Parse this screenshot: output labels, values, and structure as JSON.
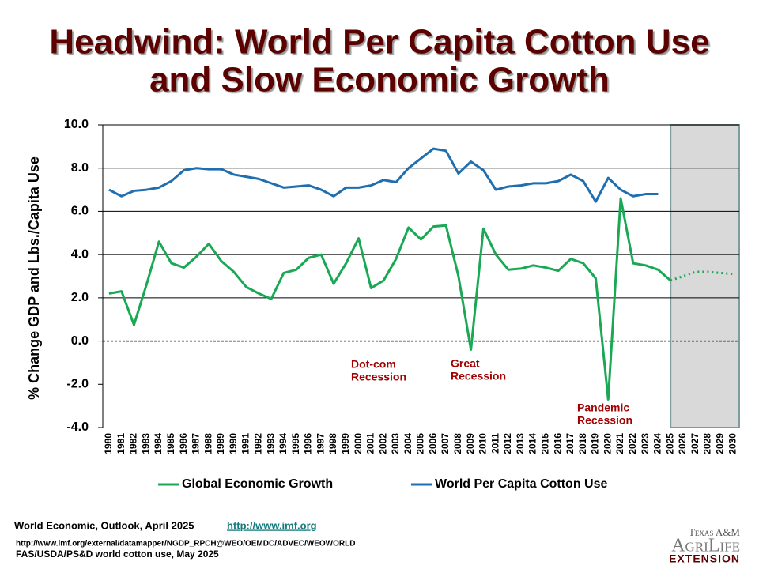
{
  "chart_data": {
    "type": "line",
    "title": [
      "Headwind:  World Per Capita Cotton Use",
      "and Slow Economic Growth"
    ],
    "y_label": "% Change GDP and Lbs./Capita Use",
    "categories": [
      "1980",
      "1981",
      "1982",
      "1983",
      "1984",
      "1985",
      "1986",
      "1987",
      "1988",
      "1989",
      "1990",
      "1991",
      "1992",
      "1993",
      "1994",
      "1995",
      "1996",
      "1997",
      "1998",
      "1999",
      "2000",
      "2001",
      "2002",
      "2003",
      "2004",
      "2005",
      "2006",
      "2007",
      "2008",
      "2009",
      "2010",
      "2011",
      "2012",
      "2013",
      "2014",
      "2015",
      "2016",
      "2017",
      "2018",
      "2019",
      "2020",
      "2021",
      "2022",
      "2023",
      "2024",
      "2025",
      "2026",
      "2027",
      "2028",
      "2029",
      "2030"
    ],
    "series": [
      {
        "name": "Global Economic Growth",
        "color": "#1aa855",
        "values": [
          2.2,
          2.3,
          0.75,
          2.6,
          4.6,
          3.6,
          3.4,
          3.9,
          4.5,
          3.7,
          3.2,
          2.5,
          2.2,
          1.95,
          3.15,
          3.3,
          3.85,
          4.0,
          2.65,
          3.6,
          4.75,
          2.45,
          2.8,
          3.8,
          5.25,
          4.7,
          5.3,
          5.35,
          3.0,
          -0.4,
          5.2,
          4.0,
          3.3,
          3.35,
          3.5,
          3.4,
          3.25,
          3.8,
          3.6,
          2.9,
          -2.7,
          6.6,
          3.6,
          3.5,
          3.3,
          2.8,
          3.0,
          3.2,
          3.2,
          3.15,
          3.1
        ]
      },
      {
        "name": "World Per Capita Cotton Use",
        "color": "#1f6eb0",
        "values": [
          7.0,
          6.7,
          6.95,
          7.0,
          7.1,
          7.4,
          7.9,
          8.0,
          7.95,
          7.95,
          7.7,
          7.6,
          7.5,
          7.3,
          7.1,
          7.15,
          7.2,
          7.0,
          6.7,
          7.1,
          7.1,
          7.2,
          7.45,
          7.35,
          8.0,
          8.45,
          8.9,
          8.8,
          7.75,
          8.3,
          7.9,
          7.0,
          7.15,
          7.2,
          7.3,
          7.3,
          7.4,
          7.7,
          7.4,
          6.45,
          7.55,
          7.0,
          6.7,
          6.8,
          6.8,
          null,
          null,
          null,
          null,
          null,
          null
        ]
      }
    ],
    "forecast_start": "2025",
    "ylim": [
      -4,
      10
    ],
    "yticks": [
      {
        "value": -4,
        "label": "-4.0"
      },
      {
        "value": -2,
        "label": "-2.0"
      },
      {
        "value": 0,
        "label": "0.0"
      },
      {
        "value": 2,
        "label": "2.0"
      },
      {
        "value": 4,
        "label": "4.0"
      },
      {
        "value": 6,
        "label": "6.0"
      },
      {
        "value": 8,
        "label": "8.0"
      },
      {
        "value": 10,
        "label": "10.0"
      }
    ],
    "grid": true,
    "annotations": [
      [
        "Dot-com",
        "Recession"
      ],
      [
        "Great",
        "Recession"
      ],
      [
        "Pandemic",
        "Recession"
      ]
    ]
  },
  "footer": {
    "source1": "World Economic, Outlook, April 2025",
    "link": "http://www.imf.org",
    "source2": "http://www.imf.org/external/datamapper/NGDP_RPCH@WEO/OEMDC/ADVEC/WEOWORLD",
    "source3": "FAS/USDA/PS&D world cotton use, May 2025"
  },
  "logo": {
    "line1": "Texas A&M",
    "line2": "AgriLife",
    "line3": "Extension"
  }
}
